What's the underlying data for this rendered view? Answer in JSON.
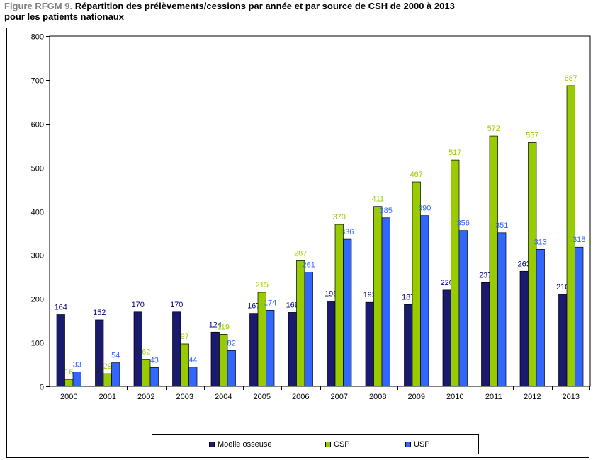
{
  "title": {
    "figure_label": "Figure RFGM 9.",
    "text_line1": "Répartition des prélèvements/cessions par année et par source de CSH de 2000 à 2013",
    "text_line2": "pour les patients nationaux"
  },
  "colors": {
    "moelle": "#1a1a6e",
    "csp": "#99cc00",
    "usp": "#3366ff",
    "csp_label": "#99cc00",
    "usp_label": "#3366ff",
    "moelle_label": "#000080"
  },
  "chart_data": {
    "type": "bar",
    "categories": [
      "2000",
      "2001",
      "2002",
      "2003",
      "2004",
      "2005",
      "2006",
      "2007",
      "2008",
      "2009",
      "2010",
      "2011",
      "2012",
      "2013"
    ],
    "series": [
      {
        "name": "Moelle osseuse",
        "values": [
          164,
          152,
          170,
          170,
          124,
          167,
          169,
          195,
          192,
          187,
          220,
          237,
          263,
          210
        ]
      },
      {
        "name": "CSP",
        "values": [
          16,
          29,
          62,
          97,
          119,
          215,
          287,
          370,
          411,
          467,
          517,
          572,
          557,
          687
        ]
      },
      {
        "name": "USP",
        "values": [
          33,
          54,
          43,
          44,
          82,
          174,
          261,
          336,
          385,
          390,
          356,
          351,
          313,
          318
        ]
      }
    ],
    "ylim": [
      0,
      800
    ],
    "yticks": [
      0,
      100,
      200,
      300,
      400,
      500,
      600,
      700,
      800
    ],
    "ytick_labels": [
      "0",
      "100",
      "200",
      "300",
      "400",
      "500",
      "600",
      "700",
      "800"
    ],
    "xlabel": "",
    "ylabel": "",
    "grid": false,
    "legend_position": "bottom"
  }
}
